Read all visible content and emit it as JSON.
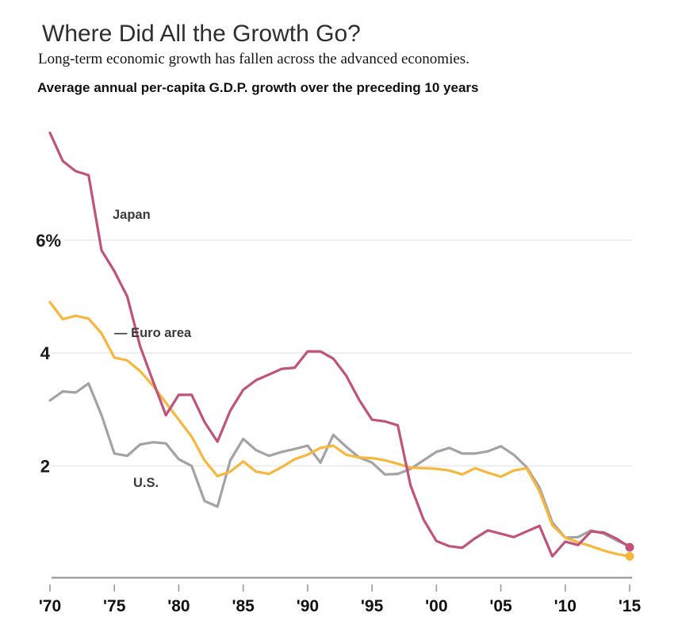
{
  "header": {
    "title": "Where Did All the Growth Go?",
    "subtitle": "Long-term economic growth has fallen across the advanced economies.",
    "measure_label": "Average annual per-capita G.D.P. growth over the preceding 10 years"
  },
  "chart_data": {
    "type": "line",
    "title": "Where Did All the Growth Go?",
    "subtitle": "Long-term economic growth has fallen across the advanced economies.",
    "ylabel": "Average annual per-capita G.D.P. growth over the preceding 10 years",
    "unit": "percent",
    "xlim": [
      1970,
      2015
    ],
    "ylim": [
      0,
      8.2
    ],
    "grid": "horizontal",
    "x_tick_years": [
      1970,
      1975,
      1980,
      1985,
      1990,
      1995,
      2000,
      2005,
      2010,
      2015
    ],
    "x_tick_labels": [
      "'70",
      "'75",
      "'80",
      "'85",
      "'90",
      "'95",
      "'00",
      "'05",
      "'10",
      "'15"
    ],
    "y_ticks": [
      {
        "value": 2,
        "label": "2"
      },
      {
        "value": 4,
        "label": "4"
      },
      {
        "value": 6,
        "label": "6%"
      }
    ],
    "x": [
      1970,
      1971,
      1972,
      1973,
      1974,
      1975,
      1976,
      1977,
      1978,
      1979,
      1980,
      1981,
      1982,
      1983,
      1984,
      1985,
      1986,
      1987,
      1988,
      1989,
      1990,
      1991,
      1992,
      1993,
      1994,
      1995,
      1996,
      1997,
      1998,
      1999,
      2000,
      2001,
      2002,
      2003,
      2004,
      2005,
      2006,
      2007,
      2008,
      2009,
      2010,
      2011,
      2012,
      2013,
      2014,
      2015
    ],
    "series": [
      {
        "name": "U.S.",
        "color": "#a3a3a3",
        "end_dot": false,
        "values": [
          3.16,
          3.32,
          3.3,
          3.46,
          2.9,
          2.22,
          2.18,
          2.38,
          2.42,
          2.4,
          2.12,
          2.0,
          1.38,
          1.28,
          2.1,
          2.48,
          2.28,
          2.18,
          2.25,
          2.3,
          2.36,
          2.06,
          2.55,
          2.34,
          2.15,
          2.06,
          1.85,
          1.86,
          1.95,
          2.1,
          2.25,
          2.32,
          2.22,
          2.22,
          2.26,
          2.35,
          2.2,
          1.98,
          1.62,
          1.0,
          0.73,
          0.74,
          0.86,
          0.8,
          0.68,
          0.58
        ]
      },
      {
        "name": "Euro area",
        "color": "#f8b73c",
        "end_dot": true,
        "values": [
          4.9,
          4.6,
          4.66,
          4.61,
          4.35,
          3.92,
          3.87,
          3.68,
          3.42,
          3.12,
          2.82,
          2.52,
          2.1,
          1.82,
          1.9,
          2.08,
          1.9,
          1.86,
          1.98,
          2.12,
          2.2,
          2.32,
          2.36,
          2.2,
          2.15,
          2.14,
          2.1,
          2.04,
          1.97,
          1.96,
          1.95,
          1.92,
          1.85,
          1.96,
          1.88,
          1.81,
          1.92,
          1.96,
          1.55,
          0.95,
          0.73,
          0.65,
          0.58,
          0.5,
          0.44,
          0.4
        ]
      },
      {
        "name": "Japan",
        "color": "#c0527c",
        "end_dot": true,
        "values": [
          7.9,
          7.4,
          7.22,
          7.15,
          5.82,
          5.45,
          5.0,
          4.12,
          3.5,
          2.9,
          3.26,
          3.26,
          2.78,
          2.43,
          2.98,
          3.35,
          3.52,
          3.62,
          3.72,
          3.74,
          4.03,
          4.03,
          3.9,
          3.6,
          3.17,
          2.82,
          2.79,
          2.72,
          1.65,
          1.05,
          0.67,
          0.58,
          0.55,
          0.72,
          0.86,
          0.8,
          0.74,
          0.84,
          0.94,
          0.4,
          0.66,
          0.6,
          0.84,
          0.82,
          0.71,
          0.56
        ]
      }
    ],
    "annotations": [
      {
        "text": "Japan",
        "series": "Japan"
      },
      {
        "text": "— Euro area",
        "series": "Euro area"
      },
      {
        "text": "U.S.",
        "series": "U.S."
      }
    ],
    "legend_position": "inline-labels"
  }
}
